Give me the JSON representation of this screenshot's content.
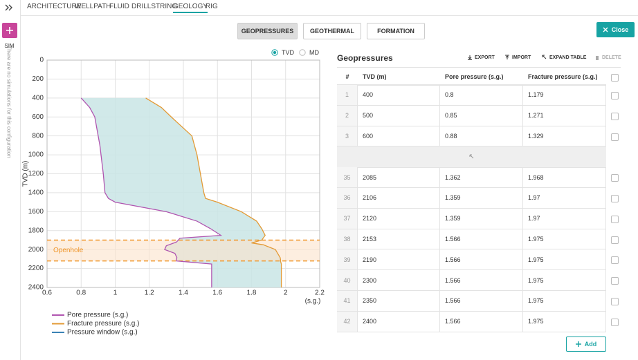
{
  "nav": {
    "tabs": [
      "ARCHITECTURE",
      "WELLPATH",
      "FLUID",
      "DRILLSTRING",
      "GEOLOGY",
      "RIG"
    ],
    "active_tab": 4
  },
  "sidebar": {
    "label": "SIM",
    "message": "There are no simulations for this configuration"
  },
  "subtabs": {
    "items": [
      "GEOPRESSURES",
      "GEOTHERMAL",
      "FORMATION"
    ],
    "active": 0
  },
  "close_button": "Close",
  "depth_mode": {
    "options": [
      "TVD",
      "MD"
    ],
    "selected": 0
  },
  "chart_data": {
    "type": "line",
    "ylabel": "TVD (m)",
    "xlabel": "(s.g.)",
    "xlim": [
      0.6,
      2.2
    ],
    "xticks": [
      0.6,
      0.8,
      1,
      1.2,
      1.4,
      1.6,
      1.8,
      2,
      2.2
    ],
    "ylim": [
      0,
      2400
    ],
    "yticks": [
      0,
      200,
      400,
      600,
      800,
      1000,
      1200,
      1400,
      1600,
      1800,
      2000,
      2200,
      2400
    ],
    "y_inverted": true,
    "grid": true,
    "series": [
      {
        "name": "Pore pressure (s.g.)",
        "color": "#b055b0",
        "x": [
          0.8,
          0.85,
          0.88,
          0.91,
          0.93,
          0.94,
          0.96,
          1.0,
          1.3,
          1.48,
          1.56,
          1.62,
          1.38,
          1.36,
          1.3,
          1.29,
          1.35,
          1.362,
          1.359,
          1.359,
          1.566,
          1.566,
          1.566,
          1.566,
          1.566
        ],
        "y": [
          400,
          500,
          600,
          900,
          1200,
          1400,
          1460,
          1500,
          1600,
          1700,
          1780,
          1850,
          1880,
          1920,
          1960,
          2000,
          2040,
          2085,
          2106,
          2120,
          2153,
          2190,
          2300,
          2350,
          2400
        ]
      },
      {
        "name": "Fracture pressure (s.g.)",
        "color": "#e39a35",
        "x": [
          1.179,
          1.271,
          1.329,
          1.45,
          1.48,
          1.5,
          1.52,
          1.53,
          1.6,
          1.74,
          1.83,
          1.86,
          1.88,
          1.86,
          1.8,
          1.87,
          1.94,
          1.968,
          1.97,
          1.97,
          1.975,
          1.975,
          1.975,
          1.975,
          1.975
        ],
        "y": [
          400,
          500,
          600,
          800,
          1000,
          1200,
          1400,
          1460,
          1500,
          1600,
          1700,
          1780,
          1850,
          1900,
          1930,
          1950,
          2000,
          2085,
          2106,
          2120,
          2153,
          2190,
          2300,
          2350,
          2400
        ]
      },
      {
        "name": "Pressure window (s.g.)",
        "color": "#3a82b5",
        "fill": "#c9e5e5"
      }
    ],
    "annotations": [
      {
        "text": "Openhole",
        "from": 1900,
        "to": 2120,
        "color": "#f0962a",
        "fill": "#fbe2cb"
      }
    ]
  },
  "table": {
    "title": "Geopressures",
    "actions": [
      "EXPORT",
      "IMPORT",
      "EXPAND TABLE",
      "DELETE"
    ],
    "columns": [
      "#",
      "TVD (m)",
      "Pore pressure (s.g.)",
      "Fracture pressure (s.g.)"
    ],
    "rows_top": [
      [
        "1",
        "400",
        "0.8",
        "1.179"
      ],
      [
        "2",
        "500",
        "0.85",
        "1.271"
      ],
      [
        "3",
        "600",
        "0.88",
        "1.329"
      ]
    ],
    "rows_bottom": [
      [
        "35",
        "2085",
        "1.362",
        "1.968"
      ],
      [
        "36",
        "2106",
        "1.359",
        "1.97"
      ],
      [
        "37",
        "2120",
        "1.359",
        "1.97"
      ],
      [
        "38",
        "2153",
        "1.566",
        "1.975"
      ],
      [
        "39",
        "2190",
        "1.566",
        "1.975"
      ],
      [
        "40",
        "2300",
        "1.566",
        "1.975"
      ],
      [
        "41",
        "2350",
        "1.566",
        "1.975"
      ],
      [
        "42",
        "2400",
        "1.566",
        "1.975"
      ]
    ],
    "add_button": "Add"
  }
}
